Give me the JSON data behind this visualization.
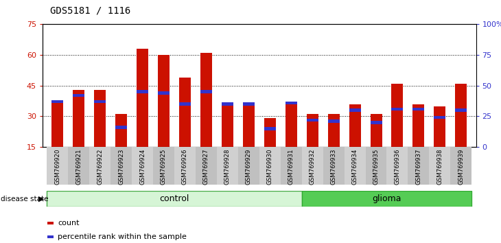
{
  "title": "GDS5181 / 1116",
  "samples": [
    "GSM769920",
    "GSM769921",
    "GSM769922",
    "GSM769923",
    "GSM769924",
    "GSM769925",
    "GSM769926",
    "GSM769927",
    "GSM769928",
    "GSM769929",
    "GSM769930",
    "GSM769931",
    "GSM769932",
    "GSM769933",
    "GSM769934",
    "GSM769935",
    "GSM769936",
    "GSM769937",
    "GSM769938",
    "GSM769939"
  ],
  "counts": [
    38,
    43,
    43,
    31,
    63,
    60,
    49,
    61,
    36,
    36,
    29,
    36,
    31,
    31,
    36,
    31,
    46,
    36,
    35,
    46
  ],
  "percentile_ranks": [
    37,
    42,
    37,
    16,
    45,
    44,
    35,
    45,
    35,
    35,
    15,
    36,
    22,
    21,
    30,
    20,
    31,
    31,
    24,
    30
  ],
  "control_count": 12,
  "glioma_count": 8,
  "ylim_left": [
    15,
    75
  ],
  "ylim_right": [
    0,
    100
  ],
  "yticks_left": [
    15,
    30,
    45,
    60,
    75
  ],
  "yticks_right": [
    0,
    25,
    50,
    75,
    100
  ],
  "ytick_labels_right": [
    "0",
    "25",
    "50",
    "75",
    "100%"
  ],
  "bar_color": "#cc1100",
  "blue_color": "#3333cc",
  "control_color_light": "#d6f5d6",
  "control_color_dark": "#66cc66",
  "glioma_color": "#55cc55",
  "glioma_color_dark": "#33aa33",
  "tick_bg_color": "#d0d0d0",
  "tick_bg_color2": "#c0c0c0"
}
